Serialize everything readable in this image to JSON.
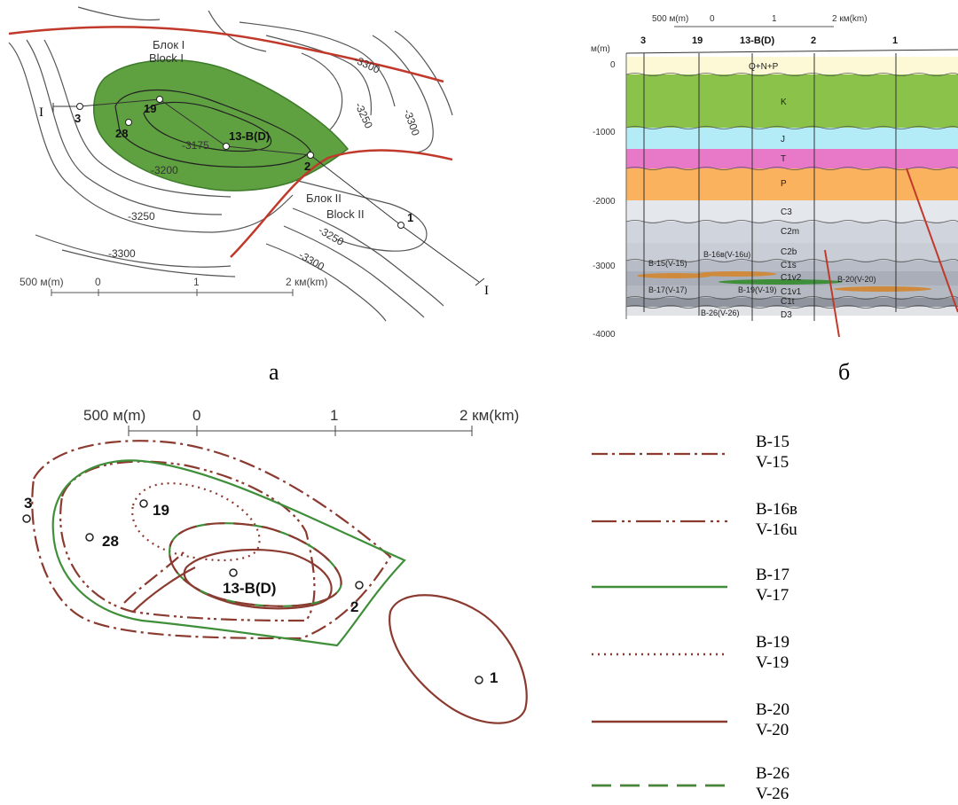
{
  "panel_a": {
    "caption": "а",
    "blocks": [
      {
        "ru": "Блок I",
        "en": "Block I"
      },
      {
        "ru": "Блок II",
        "en": "Block II"
      }
    ],
    "section_marks": [
      "I",
      "I"
    ],
    "contour_labels": [
      "-3300",
      "-3250",
      "-3300",
      "-3175",
      "-3200",
      "-3250",
      "-3300",
      "-3250",
      "-3300"
    ],
    "wells": [
      "3",
      "19",
      "28",
      "13-B(D)",
      "2",
      "1"
    ],
    "scale": {
      "zero_side": "500 м(m)",
      "zero": "0",
      "mid": "1",
      "end": "2 км(km)"
    },
    "colors": {
      "field_fill": "#5fa140",
      "fault": "#c0392b",
      "contour": "#555555"
    }
  },
  "panel_b": {
    "caption": "б",
    "scale": {
      "zero_side": "500 м(m)",
      "zero": "0",
      "mid": "1",
      "end": "2 км(km)"
    },
    "depth_unit": "м(m)",
    "depth_ticks": [
      "0",
      "-1000",
      "-2000",
      "-3000",
      "-4000"
    ],
    "wells": [
      "3",
      "19",
      "13-B(D)",
      "2",
      "1"
    ],
    "layers": [
      {
        "label": "Q+N+P",
        "color": "#fdf9d6"
      },
      {
        "label": "K",
        "color": "#8bc34a"
      },
      {
        "label": "J",
        "color": "#b3ecf7"
      },
      {
        "label": "T",
        "color": "#e878c8"
      },
      {
        "label": "P",
        "color": "#fbb25e"
      },
      {
        "label": "C3",
        "color": "#d9dde4"
      },
      {
        "label": "C2m",
        "color": "#c7ccd6"
      },
      {
        "label": "C2b",
        "color": "#c9cdd6"
      },
      {
        "label": "C1s",
        "color": "#b7bcc6"
      },
      {
        "label": "C1v2",
        "color": "#a9aeb9"
      },
      {
        "label": "C1v1",
        "color": "#9ea3ae"
      },
      {
        "label": "C1t",
        "color": "#b5b9c2"
      },
      {
        "label": "D3",
        "color": "#d6d9de"
      }
    ],
    "horizon_labels": [
      "B-15(V-15)",
      "B-16в(V-16u)",
      "B-17(V-17)",
      "B-19(V-19)",
      "B-20(V-20)",
      "B-26(V-26)"
    ]
  },
  "panel_c": {
    "scale": {
      "zero_side": "500 м(m)",
      "zero": "0",
      "mid": "1",
      "end": "2 км(km)"
    },
    "wells": [
      "3",
      "19",
      "28",
      "13-B(D)",
      "2",
      "1"
    ]
  },
  "legend": [
    {
      "line1": "B-15",
      "line2": "V-15",
      "style": "dash-dot",
      "color": "#8b3a2f"
    },
    {
      "line1": "B-16в",
      "line2": "V-16u",
      "style": "dash-dot-dot",
      "color": "#8b3a2f"
    },
    {
      "line1": "B-17",
      "line2": "V-17",
      "style": "solid",
      "color": "#3f8f3a"
    },
    {
      "line1": "B-19",
      "line2": "V-19",
      "style": "dotted",
      "color": "#8b3a2f"
    },
    {
      "line1": "B-20",
      "line2": "V-20",
      "style": "solid",
      "color": "#8b3a2f"
    },
    {
      "line1": "B-26",
      "line2": "V-26",
      "style": "bicolor-dash",
      "color": "#8b3a2f",
      "color2": "#3f8f3a"
    }
  ]
}
